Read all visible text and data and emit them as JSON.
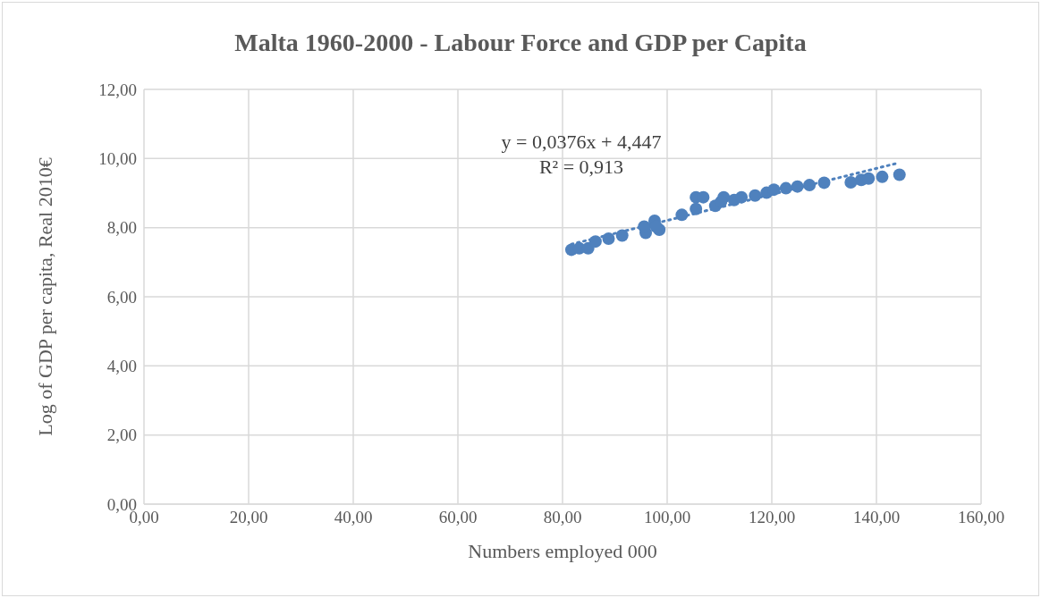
{
  "chart_data": {
    "type": "scatter",
    "title": "Malta 1960-2000 - Labour Force and GDP per Capita",
    "xlabel": "Numbers employed 000",
    "ylabel": "Log of GDP per capita, Real 2010€",
    "annotations": [
      "y = 0,0376x + 4,447",
      "R² = 0,913"
    ],
    "xlim": [
      0,
      160
    ],
    "ylim": [
      0,
      12
    ],
    "xticks": [
      {
        "value": 0,
        "label": "0,00"
      },
      {
        "value": 20,
        "label": "20,00"
      },
      {
        "value": 40,
        "label": "40,00"
      },
      {
        "value": 60,
        "label": "60,00"
      },
      {
        "value": 80,
        "label": "80,00"
      },
      {
        "value": 100,
        "label": "100,00"
      },
      {
        "value": 120,
        "label": "120,00"
      },
      {
        "value": 140,
        "label": "140,00"
      },
      {
        "value": 160,
        "label": "160,00"
      }
    ],
    "yticks": [
      {
        "value": 0,
        "label": "0,00"
      },
      {
        "value": 2,
        "label": "2,00"
      },
      {
        "value": 4,
        "label": "4,00"
      },
      {
        "value": 6,
        "label": "6,00"
      },
      {
        "value": 8,
        "label": "8,00"
      },
      {
        "value": 10,
        "label": "10,00"
      },
      {
        "value": 12,
        "label": "12,00"
      }
    ],
    "grid": true,
    "marker": "circle",
    "series": [
      {
        "color": "#4f81bd",
        "x": [
          81.7,
          83.2,
          84.9,
          86.3,
          88.8,
          91.4,
          95.9,
          95.6,
          97.6,
          98.5,
          97.9,
          102.8,
          105.5,
          105.5,
          106.9,
          109.2,
          110.8,
          110.3,
          112.8,
          114.2,
          116.8,
          119.0,
          120.4,
          122.7,
          124.9,
          127.2,
          130.0,
          135.1,
          137.1,
          138.5,
          141.1,
          144.4
        ],
        "values": [
          7.36,
          7.4,
          7.4,
          7.6,
          7.68,
          7.77,
          7.85,
          8.03,
          8.2,
          7.94,
          8.03,
          8.37,
          8.54,
          8.88,
          8.88,
          8.63,
          8.88,
          8.75,
          8.8,
          8.88,
          8.93,
          9.01,
          9.1,
          9.14,
          9.19,
          9.23,
          9.3,
          9.31,
          9.38,
          9.42,
          9.47,
          9.53
        ]
      },
      {
        "type": "line",
        "color": "#4f81bd",
        "line_style": "dotted",
        "marker": "none",
        "x": [
          81.7,
          144.4
        ],
        "values": [
          7.52,
          9.88
        ]
      }
    ]
  }
}
